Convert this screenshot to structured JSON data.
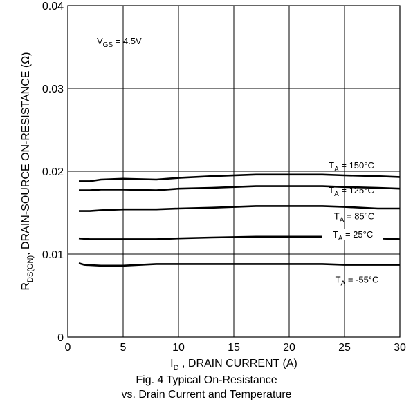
{
  "chart_data": {
    "type": "line",
    "xlabel": "I_D , DRAIN CURRENT (A)",
    "xlabel_main": "I",
    "xlabel_sub": "D",
    "xlabel_rest": " , DRAIN CURRENT (A)",
    "ylabel": "R_DS(ON), DRAIN-SOURCE ON-RESISTANCE (Ω)",
    "ylabel_main": "R",
    "ylabel_sub": "DS(ON)",
    "ylabel_rest": ", DRAIN-SOURCE ON-RESISTANCE (Ω)",
    "xlim": [
      0,
      30
    ],
    "ylim": [
      0,
      0.04
    ],
    "x_ticks": [
      0,
      5,
      10,
      15,
      20,
      25,
      30
    ],
    "x_tick_labels": [
      "0",
      "5",
      "10",
      "15",
      "20",
      "25",
      "30"
    ],
    "y_ticks": [
      0,
      0.01,
      0.02,
      0.03,
      0.04
    ],
    "y_tick_labels": [
      "0",
      "0.01",
      "0.02",
      "0.03",
      "0.04"
    ],
    "grid": true,
    "annotation": {
      "main": "V",
      "sub": "GS",
      "rest": " = 4.5V"
    },
    "series": [
      {
        "name": "T_A = 150°C",
        "label_main": "T",
        "label_sub": "A",
        "label_rest": " = 150°C",
        "x": [
          1,
          2,
          3,
          5,
          8,
          10,
          13,
          17,
          20,
          23,
          25,
          28,
          30
        ],
        "y": [
          0.0188,
          0.0188,
          0.019,
          0.0191,
          0.019,
          0.0192,
          0.0194,
          0.0196,
          0.0196,
          0.0196,
          0.0195,
          0.0194,
          0.0193
        ]
      },
      {
        "name": "T_A = 125°C",
        "label_main": "T",
        "label_sub": "A",
        "label_rest": " = 125°C",
        "x": [
          1,
          2,
          3,
          5,
          8,
          10,
          13,
          17,
          20,
          23,
          25,
          28,
          30
        ],
        "y": [
          0.0177,
          0.0177,
          0.0178,
          0.0178,
          0.0177,
          0.0179,
          0.018,
          0.0182,
          0.0182,
          0.0182,
          0.0181,
          0.018,
          0.0179
        ]
      },
      {
        "name": "T_A = 85°C",
        "label_main": "T",
        "label_sub": "A",
        "label_rest": " = 85°C",
        "x": [
          1,
          2,
          3,
          5,
          8,
          10,
          13,
          17,
          20,
          23,
          25,
          28,
          30
        ],
        "y": [
          0.0152,
          0.0152,
          0.0153,
          0.0154,
          0.0154,
          0.0155,
          0.0156,
          0.0158,
          0.0158,
          0.0158,
          0.0157,
          0.0155,
          0.0155
        ]
      },
      {
        "name": "T_A = 25°C",
        "label_main": "T",
        "label_sub": "A",
        "label_rest": " = 25°C",
        "x": [
          1,
          2,
          3,
          5,
          8,
          10,
          13,
          17,
          20,
          23,
          25,
          28,
          30
        ],
        "y": [
          0.0119,
          0.0118,
          0.0118,
          0.0118,
          0.0118,
          0.0119,
          0.012,
          0.0121,
          0.0121,
          0.0121,
          0.012,
          0.0119,
          0.0118
        ]
      },
      {
        "name": "T_A = -55°C",
        "label_main": "T",
        "label_sub": "A",
        "label_rest": " = -55°C",
        "x": [
          1,
          1.5,
          3,
          5,
          8,
          10,
          13,
          17,
          20,
          23,
          25,
          28,
          30
        ],
        "y": [
          0.0089,
          0.0087,
          0.0086,
          0.0086,
          0.0088,
          0.0088,
          0.0088,
          0.0088,
          0.0088,
          0.0088,
          0.0087,
          0.0087,
          0.0087
        ]
      }
    ]
  },
  "caption": {
    "line1": "Fig. 4 Typical On-Resistance",
    "line2": "vs. Drain Current and Temperature"
  }
}
